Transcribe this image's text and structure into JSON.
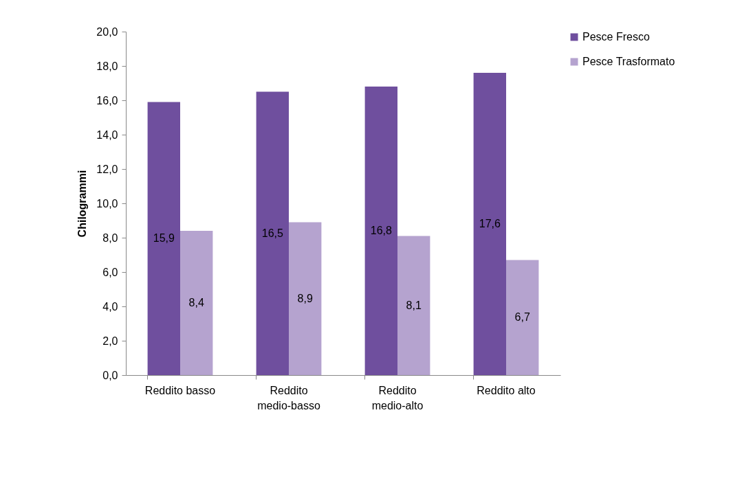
{
  "chart_data": {
    "type": "bar",
    "ylabel": "Chilogrammi",
    "categories": [
      "Reddito basso",
      "Reddito medio-basso",
      "Reddito medio-alto",
      "Reddito alto"
    ],
    "series": [
      {
        "name": "Pesce Fresco",
        "color": "#6f4f9e",
        "values": [
          15.9,
          16.5,
          16.8,
          17.6
        ],
        "value_labels": [
          "15,9",
          "16,5",
          "16,8",
          "17,6"
        ]
      },
      {
        "name": "Pesce Trasformato",
        "color": "#b5a3cf",
        "values": [
          8.4,
          8.9,
          8.1,
          6.7
        ],
        "value_labels": [
          "8,4",
          "8,9",
          "8,1",
          "6,7"
        ]
      }
    ],
    "ylim": [
      0,
      20
    ],
    "yticks": [
      {
        "value": 0,
        "label": "0,0"
      },
      {
        "value": 2,
        "label": "2,0"
      },
      {
        "value": 4,
        "label": "4,0"
      },
      {
        "value": 6,
        "label": "6,0"
      },
      {
        "value": 8,
        "label": "8,0"
      },
      {
        "value": 10,
        "label": "10,0"
      },
      {
        "value": 12,
        "label": "12,0"
      },
      {
        "value": 14,
        "label": "14,0"
      },
      {
        "value": 16,
        "label": "16,0"
      },
      {
        "value": 18,
        "label": "18,0"
      },
      {
        "value": 20,
        "label": "20,0"
      }
    ],
    "grid": false,
    "legend": "right"
  }
}
